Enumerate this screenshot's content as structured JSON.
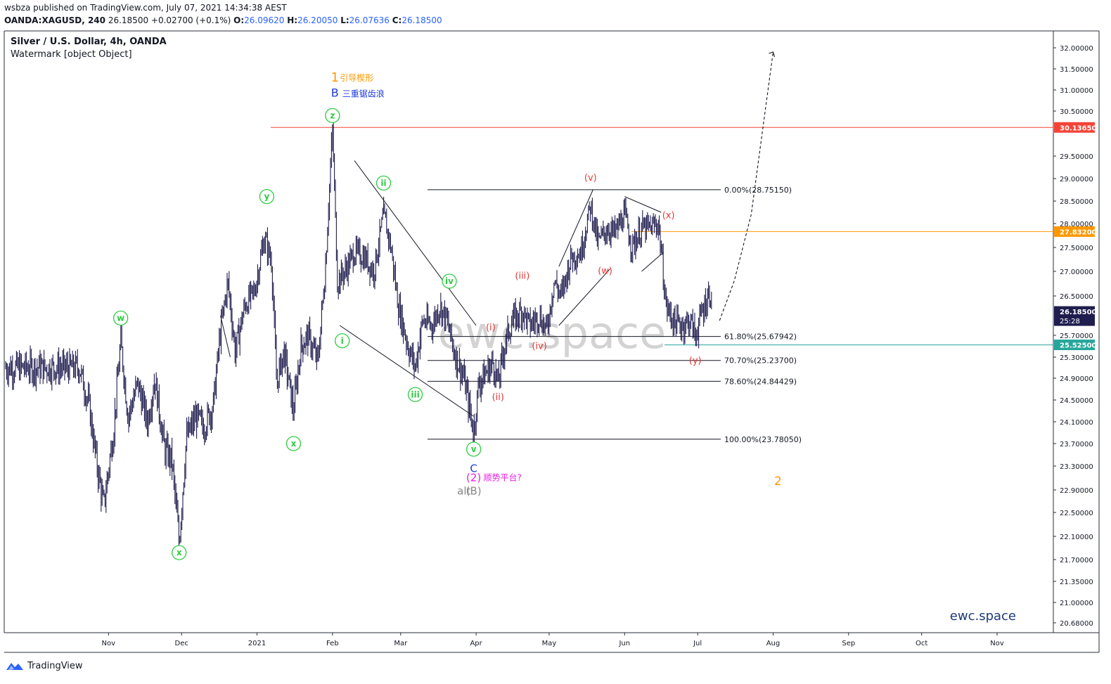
{
  "header": {
    "published": "wsbza published on TradingView.com, July 07, 2021 14:34:38 AEST",
    "symbol": "OANDA:XAGUSD, 240",
    "price": "26.18500",
    "change": "+0.02700 (+0.1%)",
    "o_label": "O:",
    "o": "26.09620",
    "h_label": "H:",
    "h": "26.20050",
    "l_label": "L:",
    "l": "26.07636",
    "c_label": "C:",
    "c": "26.18500"
  },
  "legend": {
    "title": "Silver / U.S. Dollar, 4h, OANDA",
    "watermark_line": "Watermark [object Object]"
  },
  "footer": {
    "brand": "TradingView"
  },
  "colors": {
    "green": "#2ecc40",
    "red": "#e53935",
    "orange": "#ff9800",
    "blue": "#1e3ce0",
    "magenta": "#e91ee0",
    "teal": "#26a69a",
    "candle": "#1f1c4e",
    "watermark": "#c9c9c9"
  },
  "chart_data": {
    "type": "candlestick",
    "title": "Silver / U.S. Dollar, 4h, OANDA",
    "ylim": [
      20.4,
      32.3
    ],
    "y_ticks": [
      "32.00000",
      "31.50000",
      "31.00000",
      "30.50000",
      "29.50000",
      "29.00000",
      "28.50000",
      "28.00000",
      "27.50000",
      "27.00000",
      "26.50000",
      "25.70000",
      "25.30000",
      "24.90000",
      "24.50000",
      "24.10000",
      "23.70000",
      "23.30000",
      "22.90000",
      "22.50000",
      "22.10000",
      "21.70000",
      "21.35000",
      "21.00000",
      "20.68000"
    ],
    "x_ticks": [
      "Nov",
      "Dec",
      "2021",
      "Feb",
      "Mar",
      "Apr",
      "May",
      "Jun",
      "Jul",
      "Aug",
      "Sep",
      "Oct",
      "Nov"
    ],
    "price_labels": [
      {
        "value": 30.1365,
        "text": "30.13650",
        "color": "#f44336"
      },
      {
        "value": 27.832,
        "text": "27.83200",
        "color": "#ff9800"
      },
      {
        "value": 26.185,
        "text": "26.18500",
        "sub": "25:28",
        "color": "#1f1c4e"
      },
      {
        "value": 25.525,
        "text": "25.52500",
        "color": "#26a69a"
      }
    ],
    "fib_levels": [
      {
        "label": "0.00%(28.75150)",
        "value": 28.7515
      },
      {
        "label": "61.80%(25.67942)",
        "value": 25.67942
      },
      {
        "label": "70.70%(25.23700)",
        "value": 25.237
      },
      {
        "label": "78.60%(24.84429)",
        "value": 24.84429
      },
      {
        "label": "100.00%(23.78050)",
        "value": 23.7805
      }
    ],
    "path_points": [
      [
        "2020-10-20",
        25.1
      ],
      [
        "2020-10-24",
        24.4
      ],
      [
        "2020-10-27",
        23.4
      ],
      [
        "2020-10-30",
        22.6
      ],
      [
        "2020-11-03",
        23.9
      ],
      [
        "2020-11-06",
        25.6
      ],
      [
        "2020-11-09",
        24.2
      ],
      [
        "2020-11-13",
        24.8
      ],
      [
        "2020-11-17",
        24.1
      ],
      [
        "2020-11-20",
        24.9
      ],
      [
        "2020-11-24",
        23.6
      ],
      [
        "2020-11-27",
        23.4
      ],
      [
        "2020-11-30",
        22.0
      ],
      [
        "2020-12-03",
        23.8
      ],
      [
        "2020-12-07",
        24.2
      ],
      [
        "2020-12-10",
        24.0
      ],
      [
        "2020-12-14",
        24.4
      ],
      [
        "2020-12-17",
        25.8
      ],
      [
        "2020-12-20",
        26.8
      ],
      [
        "2020-12-23",
        25.4
      ],
      [
        "2020-12-27",
        26.3
      ],
      [
        "2020-12-31",
        26.6
      ],
      [
        "2021-01-04",
        27.7
      ],
      [
        "2021-01-07",
        27.2
      ],
      [
        "2021-01-09",
        24.8
      ],
      [
        "2021-01-12",
        25.4
      ],
      [
        "2021-01-16",
        24.3
      ],
      [
        "2021-01-19",
        25.5
      ],
      [
        "2021-01-22",
        25.7
      ],
      [
        "2021-01-26",
        25.2
      ],
      [
        "2021-01-29",
        27.0
      ],
      [
        "2021-02-01",
        30.1
      ],
      [
        "2021-02-03",
        26.8
      ],
      [
        "2021-02-06",
        27.0
      ],
      [
        "2021-02-10",
        27.4
      ],
      [
        "2021-02-14",
        27.3
      ],
      [
        "2021-02-18",
        27.0
      ],
      [
        "2021-02-22",
        28.2
      ],
      [
        "2021-02-25",
        27.5
      ],
      [
        "2021-02-28",
        26.3
      ],
      [
        "2021-03-04",
        25.5
      ],
      [
        "2021-03-07",
        25.1
      ],
      [
        "2021-03-10",
        26.0
      ],
      [
        "2021-03-14",
        25.9
      ],
      [
        "2021-03-17",
        26.3
      ],
      [
        "2021-03-20",
        26.0
      ],
      [
        "2021-03-23",
        25.4
      ],
      [
        "2021-03-27",
        24.9
      ],
      [
        "2021-03-31",
        23.9
      ],
      [
        "2021-04-02",
        24.8
      ],
      [
        "2021-04-05",
        25.0
      ],
      [
        "2021-04-08",
        25.2
      ],
      [
        "2021-04-10",
        24.8
      ],
      [
        "2021-04-13",
        25.6
      ],
      [
        "2021-04-16",
        26.0
      ],
      [
        "2021-04-20",
        26.2
      ],
      [
        "2021-04-23",
        25.9
      ],
      [
        "2021-04-27",
        26.1
      ],
      [
        "2021-04-30",
        25.8
      ],
      [
        "2021-05-03",
        26.8
      ],
      [
        "2021-05-06",
        26.5
      ],
      [
        "2021-05-10",
        27.3
      ],
      [
        "2021-05-14",
        27.4
      ],
      [
        "2021-05-18",
        28.4
      ],
      [
        "2021-05-21",
        27.6
      ],
      [
        "2021-05-25",
        27.9
      ],
      [
        "2021-05-28",
        27.8
      ],
      [
        "2021-06-01",
        28.2
      ],
      [
        "2021-06-04",
        27.5
      ],
      [
        "2021-06-08",
        27.9
      ],
      [
        "2021-06-11",
        27.9
      ],
      [
        "2021-06-15",
        28.0
      ],
      [
        "2021-06-18",
        26.3
      ],
      [
        "2021-06-21",
        26.0
      ],
      [
        "2021-06-24",
        25.9
      ],
      [
        "2021-06-28",
        26.0
      ],
      [
        "2021-06-30",
        25.7
      ],
      [
        "2021-07-03",
        26.2
      ],
      [
        "2021-07-06",
        26.6
      ],
      [
        "2021-07-07",
        26.2
      ]
    ],
    "annotations": [
      {
        "text": "w",
        "kind": "circle",
        "color": "#2ecc40"
      },
      {
        "text": "x",
        "kind": "circle",
        "color": "#2ecc40"
      },
      {
        "text": "y",
        "kind": "circle",
        "color": "#2ecc40"
      },
      {
        "text": "x",
        "kind": "circle",
        "color": "#2ecc40"
      },
      {
        "text": "z",
        "kind": "circle",
        "color": "#2ecc40"
      },
      {
        "text": "i",
        "kind": "circle",
        "color": "#2ecc40"
      },
      {
        "text": "ii",
        "kind": "circle",
        "color": "#2ecc40"
      },
      {
        "text": "iii",
        "kind": "circle",
        "color": "#2ecc40"
      },
      {
        "text": "iv",
        "kind": "circle",
        "color": "#2ecc40"
      },
      {
        "text": "v",
        "kind": "circle",
        "color": "#2ecc40"
      },
      {
        "text": "(i)",
        "kind": "text",
        "color": "#e53935"
      },
      {
        "text": "(ii)",
        "kind": "text",
        "color": "#e53935"
      },
      {
        "text": "(iii)",
        "kind": "text",
        "color": "#e53935"
      },
      {
        "text": "(iv)",
        "kind": "text",
        "color": "#e53935"
      },
      {
        "text": "(v)",
        "kind": "text",
        "color": "#e53935"
      },
      {
        "text": "(w)",
        "kind": "text",
        "color": "#e53935"
      },
      {
        "text": "(x)",
        "kind": "text",
        "color": "#e53935"
      },
      {
        "text": "(y)",
        "kind": "text",
        "color": "#e53935"
      },
      {
        "text": "1",
        "kind": "text",
        "color": "#ff9800"
      },
      {
        "text": "引导楔形",
        "kind": "text",
        "color": "#ff9800"
      },
      {
        "text": "B",
        "kind": "text",
        "color": "#1e3ce0"
      },
      {
        "text": "三重锯齿浪",
        "kind": "text",
        "color": "#1e3ce0"
      },
      {
        "text": "C",
        "kind": "text",
        "color": "#1e3ce0"
      },
      {
        "text": "(2)",
        "kind": "text",
        "color": "#e91ee0"
      },
      {
        "text": "顺势平台?",
        "kind": "text",
        "color": "#e91ee0"
      },
      {
        "text": "alt",
        "kind": "text",
        "color": "#888888"
      },
      {
        "text": "(B)",
        "kind": "text",
        "color": "#888888"
      },
      {
        "text": "2",
        "kind": "text",
        "color": "#ff9800"
      }
    ],
    "watermark_text": "ewc.space",
    "brand_text": "ewc.space"
  }
}
